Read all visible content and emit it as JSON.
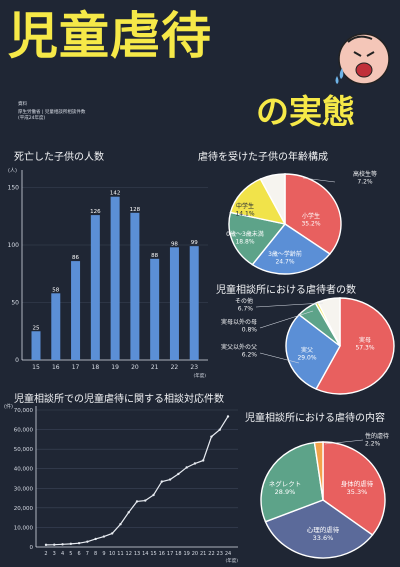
{
  "title": "児童虐待",
  "subtitle": "の実態",
  "source": {
    "label": "資料",
    "lines": [
      "厚生労働省 | 児童相談所相談件数",
      "(平成24年度)"
    ]
  },
  "colors": {
    "background": "#1f2634",
    "title": "#f6e948",
    "bar": "#5b8fd6",
    "line": "#e8ecf2"
  },
  "icons": [
    "crying-child-face-icon"
  ],
  "chart_data": [
    {
      "type": "bar",
      "title": "死亡した子供の人数",
      "ylabel": "(人)",
      "xlabel": "(年度)",
      "ylim": [
        0,
        160
      ],
      "yticks": [
        0,
        50,
        100,
        150
      ],
      "categories": [
        "15",
        "16",
        "17",
        "18",
        "19",
        "20",
        "21",
        "22",
        "23"
      ],
      "values": [
        25,
        58,
        86,
        126,
        142,
        128,
        88,
        98,
        99
      ],
      "labels": [
        "25",
        "58",
        "86",
        "126",
        "142",
        "128",
        "88",
        "98",
        "99"
      ]
    },
    {
      "type": "pie",
      "title": "虐待を受けた子供の年齢構成",
      "slices": [
        {
          "label": "小学生",
          "value": 35.2,
          "text": "35.2%",
          "color": "#e8605f"
        },
        {
          "label": "3歳～学齢前",
          "value": 24.7,
          "text": "24.7%",
          "color": "#5b8fd6"
        },
        {
          "label": "0歳～3歳未満",
          "value": 18.8,
          "text": "18.8%",
          "color": "#5da389"
        },
        {
          "label": "中学生",
          "value": 14.1,
          "text": "14.1%",
          "color": "#f1e34a"
        },
        {
          "label": "高校生等",
          "value": 7.2,
          "text": "7.2%",
          "color": "#f6f4ef"
        }
      ]
    },
    {
      "type": "pie",
      "title": "児童相談所における虐待者の数",
      "slices": [
        {
          "label": "実母",
          "value": 57.3,
          "text": "57.3%",
          "color": "#e8605f"
        },
        {
          "label": "実父",
          "value": 29.0,
          "text": "29.0%",
          "color": "#5b8fd6"
        },
        {
          "label": "実父以外の父",
          "value": 6.2,
          "text": "6.2%",
          "color": "#5da389"
        },
        {
          "label": "実母以外の母",
          "value": 0.8,
          "text": "0.8%",
          "color": "#f1e34a"
        },
        {
          "label": "その他",
          "value": 6.7,
          "text": "6.7%",
          "color": "#f6f4ef"
        }
      ]
    },
    {
      "type": "line",
      "title": "児童相談所での児童虐待に関する相談対応件数",
      "ylabel": "(件)",
      "xlabel": "(年度)",
      "ylim": [
        0,
        70000
      ],
      "yticks": [
        0,
        10000,
        20000,
        30000,
        40000,
        50000,
        60000,
        70000
      ],
      "ytick_labels": [
        "0",
        "10,000",
        "20,000",
        "30,000",
        "40,000",
        "50,000",
        "60,000",
        "70,000"
      ],
      "x": [
        "2",
        "3",
        "4",
        "5",
        "6",
        "7",
        "8",
        "9",
        "10",
        "11",
        "12",
        "13",
        "14",
        "15",
        "16",
        "17",
        "18",
        "19",
        "20",
        "21",
        "22",
        "23",
        "24"
      ],
      "values": [
        1101,
        1171,
        1372,
        1611,
        1961,
        2722,
        4102,
        5352,
        6932,
        11631,
        17725,
        23274,
        23738,
        26569,
        33408,
        34472,
        37323,
        40639,
        42664,
        44211,
        56384,
        59919,
        66701
      ]
    },
    {
      "type": "pie",
      "title": "児童相談所における虐待の内容",
      "slices": [
        {
          "label": "身体的虐待",
          "value": 35.3,
          "text": "35.3%",
          "color": "#e8605f"
        },
        {
          "label": "心理的虐待",
          "value": 33.6,
          "text": "33.6%",
          "color": "#5b6a9a"
        },
        {
          "label": "ネグレクト",
          "value": 28.9,
          "text": "28.9%",
          "color": "#5da389"
        },
        {
          "label": "性的虐待",
          "value": 2.2,
          "text": "2.2%",
          "color": "#f3a24a"
        }
      ]
    }
  ]
}
